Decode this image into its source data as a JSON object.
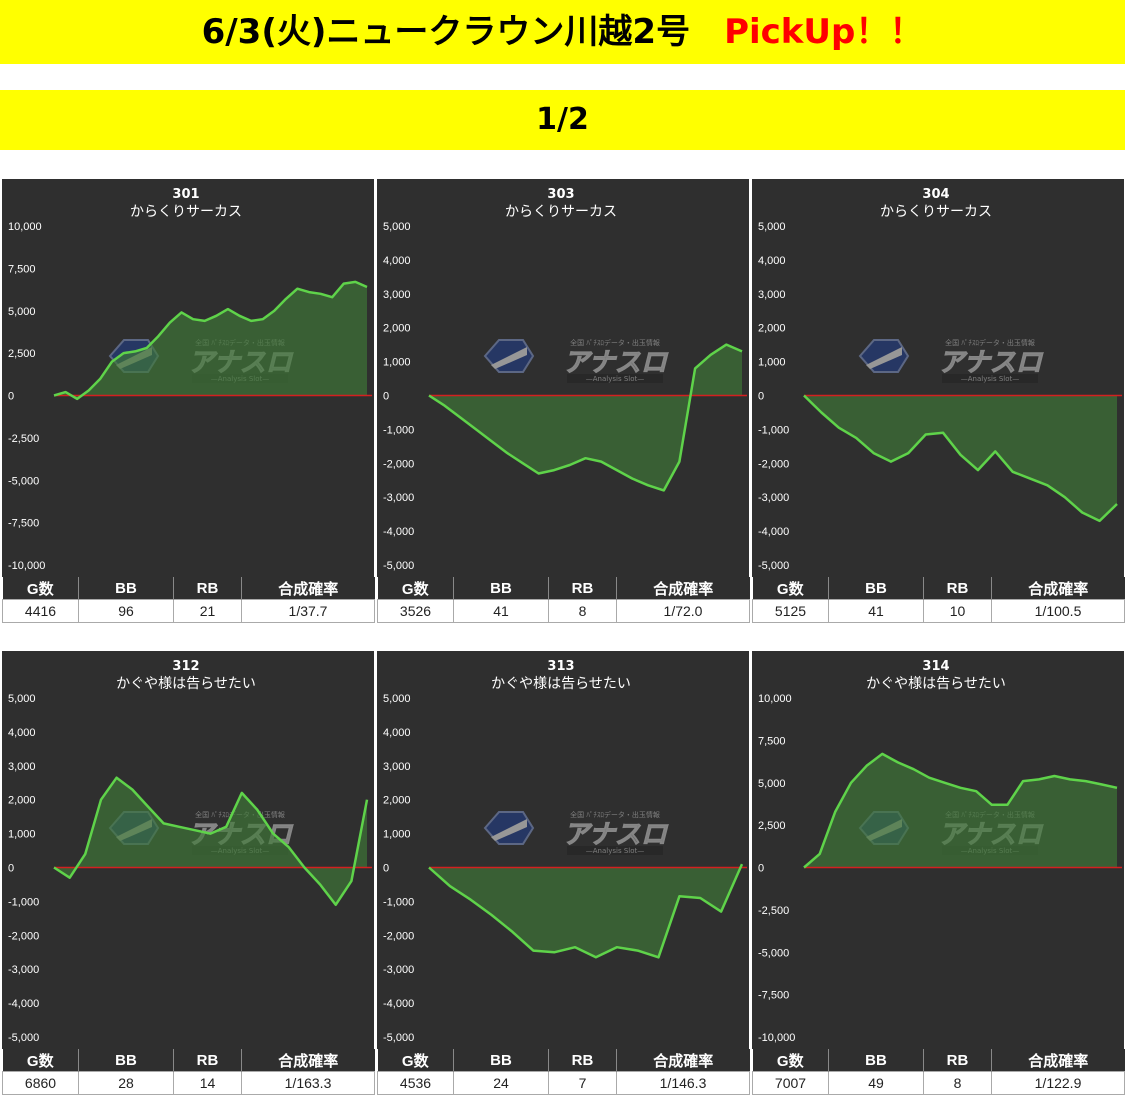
{
  "header": {
    "title": "6/3(火)ニュークラウン川越2号",
    "pickup": "PickUp！！",
    "page_indicator": "1/2"
  },
  "logo": {
    "top_text": "全国 ﾊﾟﾁｽﾛデータ・出玉情報",
    "main_text": "アナスロ",
    "sub_text": "—Analysis Slot—"
  },
  "colors": {
    "line": "#5fd34a",
    "fill": "#3f7a37",
    "zero_line": "#d42020",
    "panel_bg": "#2f2f2f",
    "banner": "#ffff00",
    "pickup": "#ff0000"
  },
  "table_headers": [
    "G数",
    "BB",
    "RB",
    "合成確率"
  ],
  "chart_data": [
    {
      "type": "area",
      "number": "301",
      "title": "からくりサーカス",
      "ylim": [
        -10000,
        10000
      ],
      "yticks": [
        "10,000",
        "7,500",
        "5,000",
        "2,500",
        "0",
        "-2,500",
        "-5,000",
        "-7,500",
        "-10,000"
      ],
      "values": [
        0,
        200,
        -200,
        300,
        1000,
        2000,
        2500,
        2600,
        2800,
        3500,
        4300,
        4900,
        4500,
        4400,
        4700,
        5100,
        4700,
        4400,
        4500,
        5000,
        5700,
        6300,
        6100,
        6000,
        5800,
        6600,
        6700,
        6400
      ],
      "stats": {
        "games": "4416",
        "bb": "96",
        "rb": "21",
        "prob": "1/37.7"
      }
    },
    {
      "type": "area",
      "number": "303",
      "title": "からくりサーカス",
      "ylim": [
        -5000,
        5000
      ],
      "yticks": [
        "5,000",
        "4,000",
        "3,000",
        "2,000",
        "1,000",
        "0",
        "-1,000",
        "-2,000",
        "-3,000",
        "-4,000",
        "-5,000"
      ],
      "values": [
        0,
        -300,
        -650,
        -1000,
        -1350,
        -1700,
        -2000,
        -2300,
        -2200,
        -2050,
        -1850,
        -1950,
        -2200,
        -2450,
        -2650,
        -2800,
        -1950,
        800,
        1200,
        1500,
        1300
      ],
      "stats": {
        "games": "3526",
        "bb": "41",
        "rb": "8",
        "prob": "1/72.0"
      }
    },
    {
      "type": "area",
      "number": "304",
      "title": "からくりサーカス",
      "ylim": [
        -5000,
        5000
      ],
      "yticks": [
        "5,000",
        "4,000",
        "3,000",
        "2,000",
        "1,000",
        "0",
        "-1,000",
        "-2,000",
        "-3,000",
        "-4,000",
        "-5,000"
      ],
      "values": [
        0,
        -500,
        -950,
        -1250,
        -1700,
        -1950,
        -1700,
        -1150,
        -1100,
        -1750,
        -2200,
        -1650,
        -2250,
        -2450,
        -2650,
        -3000,
        -3450,
        -3700,
        -3200
      ],
      "stats": {
        "games": "5125",
        "bb": "41",
        "rb": "10",
        "prob": "1/100.5"
      }
    },
    {
      "type": "area",
      "number": "312",
      "title": "かぐや様は告らせたい",
      "ylim": [
        -5000,
        5000
      ],
      "yticks": [
        "5,000",
        "4,000",
        "3,000",
        "2,000",
        "1,000",
        "0",
        "-1,000",
        "-2,000",
        "-3,000",
        "-4,000",
        "-5,000"
      ],
      "values": [
        0,
        -300,
        400,
        2000,
        2650,
        2300,
        1800,
        1300,
        1200,
        1100,
        1000,
        1200,
        2200,
        1700,
        1000,
        600,
        0,
        -500,
        -1100,
        -400,
        2000
      ],
      "stats": {
        "games": "6860",
        "bb": "28",
        "rb": "14",
        "prob": "1/163.3"
      }
    },
    {
      "type": "area",
      "number": "313",
      "title": "かぐや様は告らせたい",
      "ylim": [
        -5000,
        5000
      ],
      "yticks": [
        "5,000",
        "4,000",
        "3,000",
        "2,000",
        "1,000",
        "0",
        "-1,000",
        "-2,000",
        "-3,000",
        "-4,000",
        "-5,000"
      ],
      "values": [
        0,
        -550,
        -950,
        -1400,
        -1900,
        -2450,
        -2500,
        -2350,
        -2650,
        -2350,
        -2450,
        -2650,
        -850,
        -900,
        -1300,
        100
      ],
      "stats": {
        "games": "4536",
        "bb": "24",
        "rb": "7",
        "prob": "1/146.3"
      }
    },
    {
      "type": "area",
      "number": "314",
      "title": "かぐや様は告らせたい",
      "ylim": [
        -10000,
        10000
      ],
      "yticks": [
        "10,000",
        "7,500",
        "5,000",
        "2,500",
        "0",
        "-2,500",
        "-5,000",
        "-7,500",
        "-10,000"
      ],
      "values": [
        0,
        800,
        3300,
        5000,
        6000,
        6700,
        6200,
        5800,
        5300,
        5000,
        4700,
        4500,
        3700,
        3700,
        5100,
        5200,
        5400,
        5200,
        5100,
        4900,
        4700
      ],
      "stats": {
        "games": "7007",
        "bb": "49",
        "rb": "8",
        "prob": "1/122.9"
      }
    }
  ]
}
